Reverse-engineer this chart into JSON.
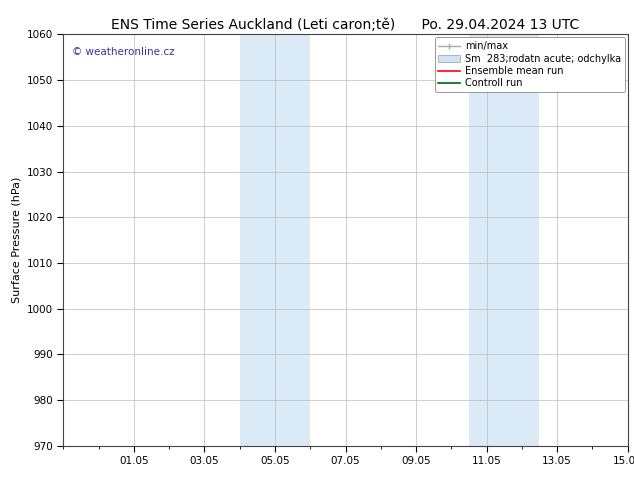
{
  "title_left": "ENS Time Series Auckland (Leti caron;tě)",
  "title_right": "Po. 29.04.2024 13 UTC",
  "ylabel": "Surface Pressure (hPa)",
  "ylim": [
    970,
    1060
  ],
  "yticks": [
    970,
    980,
    990,
    1000,
    1010,
    1020,
    1030,
    1040,
    1050,
    1060
  ],
  "xtick_labels": [
    "01.05",
    "03.05",
    "05.05",
    "07.05",
    "09.05",
    "11.05",
    "13.05",
    "15.05"
  ],
  "xtick_positions": [
    2,
    4,
    6,
    8,
    10,
    12,
    14,
    16
  ],
  "shaded_regions": [
    {
      "x_start": 5.0,
      "x_end": 7.0
    },
    {
      "x_start": 11.5,
      "x_end": 13.5
    }
  ],
  "shaded_color": "#dbeaf7",
  "watermark": "© weatheronline.cz",
  "watermark_color": "#3333aa",
  "legend_labels": [
    "min/max",
    "Sm  283;rodatn acute; odchylka",
    "Ensemble mean run",
    "Controll run"
  ],
  "bg_color": "#ffffff",
  "grid_color": "#bbbbbb",
  "title_fontsize": 10,
  "axis_label_fontsize": 8,
  "tick_fontsize": 7.5,
  "legend_fontsize": 7
}
